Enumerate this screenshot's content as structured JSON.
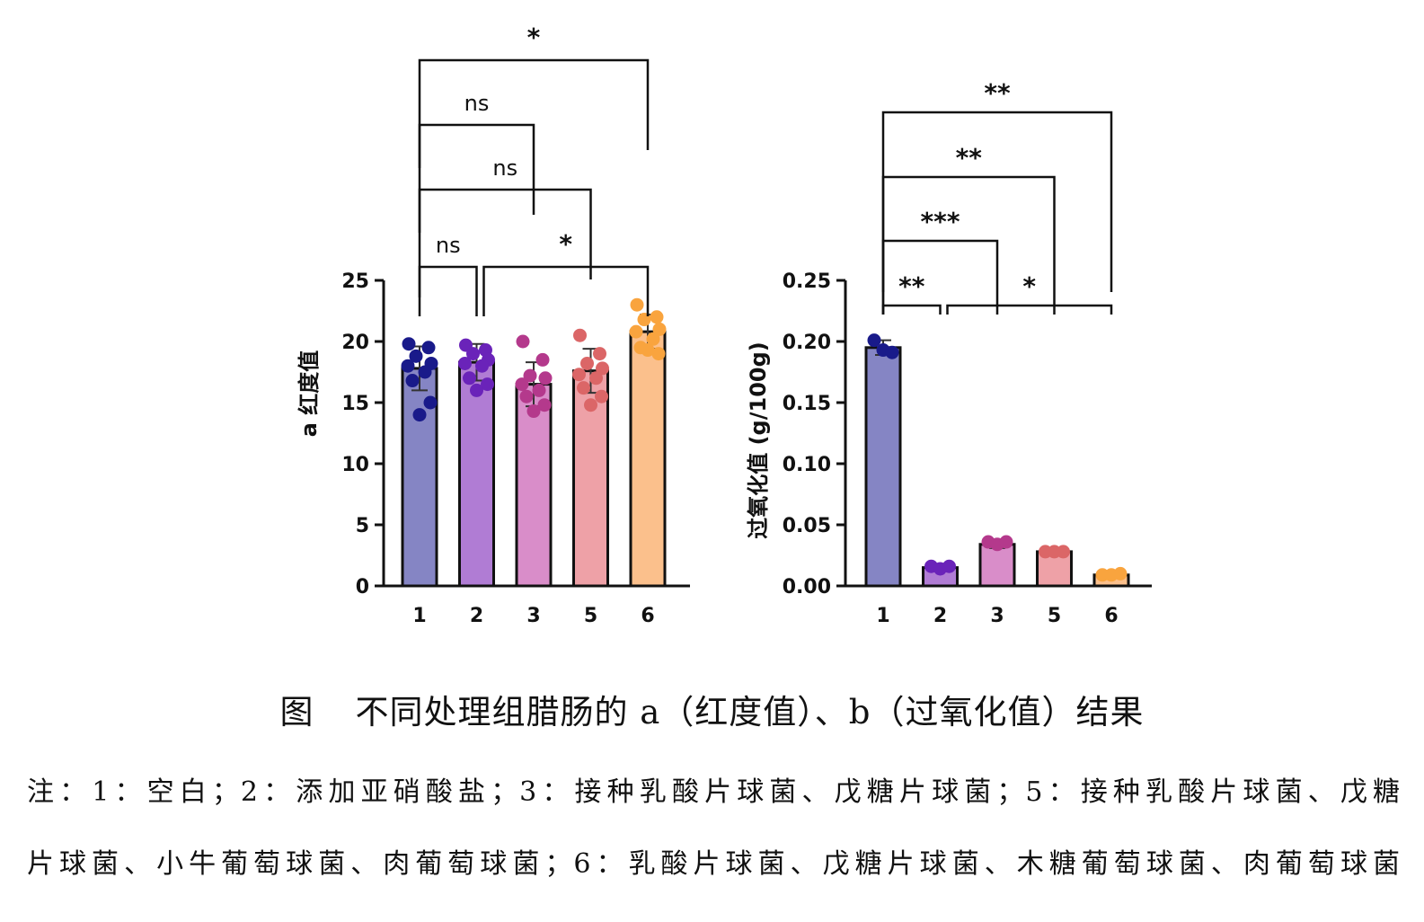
{
  "chart_data": [
    {
      "type": "bar",
      "panel": "a",
      "ylabel": "a 红度值",
      "categories": [
        "1",
        "2",
        "3",
        "5",
        "6"
      ],
      "values": [
        17.8,
        18.3,
        16.5,
        17.6,
        20.8
      ],
      "errors": [
        1.8,
        1.5,
        1.8,
        1.8,
        1.4
      ],
      "points": [
        [
          19.8,
          19.5,
          18.8,
          18.2,
          18.0,
          17.5,
          16.8,
          15.0,
          14.0
        ],
        [
          19.7,
          19.3,
          19.0,
          18.5,
          18.2,
          18.0,
          17.0,
          16.5,
          16.0
        ],
        [
          20.0,
          18.5,
          17.2,
          17.0,
          16.5,
          16.0,
          15.5,
          14.8,
          14.3
        ],
        [
          20.5,
          19.0,
          18.2,
          17.8,
          17.3,
          17.0,
          16.2,
          15.5,
          14.8
        ],
        [
          23.0,
          22.0,
          21.8,
          21.0,
          20.8,
          20.2,
          19.5,
          19.0,
          19.3
        ]
      ],
      "ylim": [
        0,
        25
      ],
      "yticks": [
        "0",
        "5",
        "10",
        "15",
        "20",
        "25"
      ],
      "colors": [
        "#8585c4",
        "#b07cd4",
        "#d98dc9",
        "#eea1a7",
        "#fbc08c"
      ],
      "point_colors": [
        "#191a8a",
        "#6a23b9",
        "#b4398c",
        "#db6667",
        "#f9a43e"
      ],
      "comparisons": [
        {
          "from": 0,
          "to": 4,
          "label": "*"
        },
        {
          "from": 0,
          "to": 2,
          "label": "ns"
        },
        {
          "from": 0,
          "to": 3,
          "label": "ns"
        },
        {
          "from": 0,
          "to": 1,
          "label": "ns"
        },
        {
          "from": 1,
          "to": 4,
          "label": "*"
        }
      ]
    },
    {
      "type": "bar",
      "panel": "b",
      "ylabel": "过氧化值 (g/100g)",
      "categories": [
        "1",
        "2",
        "3",
        "5",
        "6"
      ],
      "values": [
        0.195,
        0.015,
        0.034,
        0.028,
        0.009
      ],
      "errors": [
        0.006,
        0.002,
        0.003,
        0.002,
        0.002
      ],
      "points": [
        [
          0.201,
          0.193,
          0.191
        ],
        [
          0.016,
          0.014,
          0.016
        ],
        [
          0.036,
          0.034,
          0.036
        ],
        [
          0.028,
          0.028,
          0.028
        ],
        [
          0.009,
          0.009,
          0.01
        ]
      ],
      "ylim": [
        0,
        0.25
      ],
      "yticks": [
        "0.00",
        "0.05",
        "0.10",
        "0.15",
        "0.20",
        "0.25"
      ],
      "colors": [
        "#8585c4",
        "#b07cd4",
        "#d98dc9",
        "#eea1a7",
        "#fbc08c"
      ],
      "point_colors": [
        "#191a8a",
        "#6a23b9",
        "#b4398c",
        "#db6667",
        "#f9a43e"
      ],
      "comparisons": [
        {
          "from": 0,
          "to": 4,
          "label": "**"
        },
        {
          "from": 0,
          "to": 3,
          "label": "**"
        },
        {
          "from": 0,
          "to": 2,
          "label": "***"
        },
        {
          "from": 0,
          "to": 1,
          "label": "**"
        },
        {
          "from": 1,
          "to": 4,
          "label": "*"
        }
      ]
    }
  ],
  "caption": {
    "label": "图",
    "text": "不同处理组腊肠的 a（红度值）、b（过氧化值）结果"
  },
  "note": {
    "line1": "注：1：空白；2：添加亚硝酸盐；3：接种乳酸片球菌、戊糖片球菌；5：接种乳酸片球菌、戊糖",
    "line2": "片球菌、小牛葡萄球菌、肉葡萄球菌；6：乳酸片球菌、戊糖片球菌、木糖葡萄球菌、肉葡萄球菌"
  }
}
